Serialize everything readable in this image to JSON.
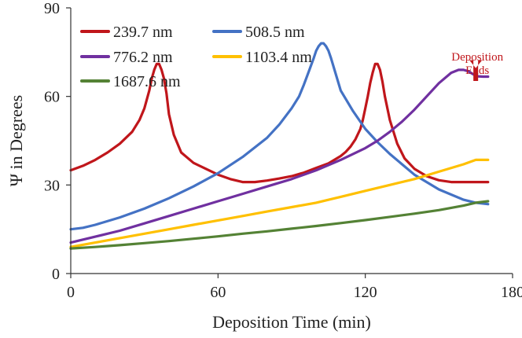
{
  "chart_data": {
    "type": "line",
    "xlabel": "Deposition Time (min)",
    "ylabel": "Ψ in Degrees",
    "xlim": [
      0,
      180
    ],
    "ylim": [
      0,
      90
    ],
    "xticks": [
      0,
      60,
      120,
      180
    ],
    "yticks": [
      0,
      30,
      60,
      90
    ],
    "legend_position": "top-left",
    "annotation": {
      "lines": [
        "Deposition",
        "Ends"
      ],
      "at": [
        165,
        68
      ],
      "color": "#c0161b"
    },
    "series": [
      {
        "name": "239.7 nm",
        "color": "#c0161b",
        "x": [
          0,
          5,
          10,
          15,
          20,
          25,
          28,
          30,
          32,
          33,
          34,
          35,
          36,
          37,
          38,
          39,
          40,
          42,
          45,
          50,
          55,
          60,
          65,
          70,
          75,
          80,
          85,
          90,
          95,
          100,
          105,
          110,
          112,
          114,
          116,
          118,
          119,
          120,
          121,
          122,
          123,
          124,
          125,
          126,
          127,
          128,
          130,
          133,
          136,
          140,
          145,
          150,
          155,
          160,
          165,
          170
        ],
        "y": [
          35,
          36.5,
          38.5,
          41,
          44,
          48,
          52,
          56,
          62,
          66,
          69,
          71,
          71,
          69,
          66,
          61,
          54,
          47,
          41,
          37.5,
          35.5,
          33.5,
          32,
          31,
          31,
          31.5,
          32.2,
          33,
          34.2,
          35.8,
          37.3,
          39.8,
          41.2,
          43,
          45.5,
          49,
          52,
          56,
          60,
          64.5,
          68,
          71,
          71,
          69,
          65,
          60,
          52,
          44,
          39,
          35.5,
          33,
          31.6,
          31,
          31,
          31,
          31
        ]
      },
      {
        "name": "508.5 nm",
        "color": "#4472c4",
        "x": [
          0,
          5,
          10,
          20,
          30,
          40,
          50,
          60,
          70,
          80,
          85,
          90,
          93,
          95,
          97,
          99,
          100,
          101,
          102,
          103,
          104,
          105,
          106,
          108,
          110,
          115,
          120,
          125,
          130,
          140,
          150,
          160,
          165,
          170
        ],
        "y": [
          15,
          15.5,
          16.5,
          19,
          22,
          25.5,
          29.5,
          34,
          39.5,
          46,
          50.5,
          56,
          60,
          64,
          68.5,
          73,
          75.5,
          77,
          78,
          78,
          77,
          75.5,
          73,
          67.5,
          62,
          55,
          49,
          44.5,
          40.5,
          33.5,
          28.5,
          25,
          24,
          23.5
        ]
      },
      {
        "name": "776.2 nm",
        "color": "#7030a0",
        "x": [
          0,
          10,
          20,
          30,
          40,
          50,
          60,
          70,
          80,
          90,
          100,
          110,
          120,
          125,
          130,
          135,
          140,
          145,
          150,
          155,
          158,
          160,
          162,
          164,
          166,
          168,
          170
        ],
        "y": [
          10.5,
          12.5,
          14.5,
          17,
          19.5,
          22,
          24.5,
          27,
          29.5,
          32,
          35,
          38.5,
          42.5,
          45,
          48,
          51.5,
          55.5,
          60,
          64.5,
          68,
          69,
          69,
          68.5,
          67.5,
          66.8,
          66.7,
          66.7
        ]
      },
      {
        "name": "1103.4 nm",
        "color": "#ffc000",
        "x": [
          0,
          10,
          20,
          30,
          40,
          50,
          60,
          70,
          80,
          90,
          100,
          110,
          120,
          130,
          140,
          150,
          160,
          165,
          170
        ],
        "y": [
          9,
          10.5,
          12,
          13.5,
          15,
          16.5,
          18,
          19.5,
          21,
          22.5,
          24,
          26,
          28,
          30,
          32,
          34.5,
          37,
          38.5,
          38.5
        ]
      },
      {
        "name": "1687.6 nm",
        "color": "#548235",
        "x": [
          0,
          10,
          20,
          30,
          40,
          50,
          60,
          70,
          80,
          90,
          100,
          110,
          120,
          130,
          140,
          150,
          160,
          165,
          170
        ],
        "y": [
          8.5,
          9,
          9.6,
          10.3,
          11,
          11.8,
          12.6,
          13.5,
          14.3,
          15.2,
          16.1,
          17.1,
          18.1,
          19.2,
          20.3,
          21.5,
          23,
          24,
          24.5
        ]
      }
    ]
  }
}
